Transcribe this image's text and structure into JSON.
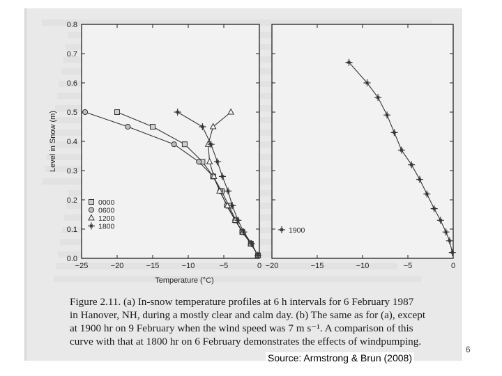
{
  "chart_data": [
    {
      "type": "line",
      "panel": "(a)",
      "xlabel": "Temperature (°C)",
      "ylabel": "Level in Snow (m)",
      "xlim": [
        -25,
        0
      ],
      "ylim": [
        0.0,
        0.8
      ],
      "xticks": [
        -25,
        -20,
        -15,
        -10,
        -5,
        0
      ],
      "yticks": [
        0.0,
        0.1,
        0.2,
        0.3,
        0.4,
        0.5,
        0.6,
        0.7,
        0.8
      ],
      "xtick_labels": [
        "−25",
        "−20",
        "−15",
        "−10",
        "−5",
        "0"
      ],
      "ytick_labels": [
        "0.0",
        "0.1",
        "0.2",
        "0.3",
        "0.4",
        "0.5",
        "0.6",
        "0.7",
        "0.8"
      ],
      "legend_position": "bottom-left",
      "series": [
        {
          "name": "0000",
          "marker": "square-open",
          "x": [
            -20.0,
            -15.0,
            -10.5,
            -8.0,
            -6.5,
            -5.3,
            -4.3,
            -3.3,
            -2.4,
            -1.2,
            -0.2
          ],
          "y": [
            0.5,
            0.45,
            0.39,
            0.33,
            0.28,
            0.23,
            0.18,
            0.13,
            0.09,
            0.05,
            0.01
          ]
        },
        {
          "name": "0600",
          "marker": "circle-open",
          "x": [
            -24.5,
            -18.5,
            -12.0,
            -8.5,
            -6.5,
            -5.5,
            -4.6,
            -3.4,
            -2.4,
            -1.2,
            -0.2
          ],
          "y": [
            0.5,
            0.45,
            0.39,
            0.33,
            0.28,
            0.23,
            0.18,
            0.13,
            0.09,
            0.05,
            0.01
          ]
        },
        {
          "name": "1200",
          "marker": "triangle-open",
          "x": [
            -4.0,
            -6.5,
            -7.2,
            -7.0,
            -6.4,
            -5.6,
            -4.5,
            -3.4,
            -2.3,
            -1.2,
            -0.2
          ],
          "y": [
            0.5,
            0.45,
            0.39,
            0.33,
            0.28,
            0.23,
            0.18,
            0.13,
            0.09,
            0.05,
            0.01
          ]
        },
        {
          "name": "1800",
          "marker": "star",
          "x": [
            -11.5,
            -8.0,
            -6.8,
            -5.9,
            -5.2,
            -4.4,
            -3.8,
            -3.0,
            -2.2,
            -1.1,
            -0.2
          ],
          "y": [
            0.5,
            0.45,
            0.39,
            0.33,
            0.28,
            0.23,
            0.18,
            0.13,
            0.09,
            0.05,
            0.01
          ]
        }
      ]
    },
    {
      "type": "line",
      "panel": "(b)",
      "xlabel": "Temperature (°C)",
      "ylabel": "",
      "xlim": [
        -20,
        0
      ],
      "ylim": [
        0.0,
        0.8
      ],
      "xticks": [
        -20,
        -15,
        -10,
        -5,
        0
      ],
      "xtick_labels": [
        "−20",
        "−15",
        "−10",
        "−5",
        "0"
      ],
      "legend_position": "bottom-left",
      "series": [
        {
          "name": "1900",
          "marker": "star",
          "x": [
            -11.5,
            -9.5,
            -8.3,
            -7.3,
            -6.5,
            -5.7,
            -4.6,
            -3.7,
            -2.9,
            -2.1,
            -1.4,
            -0.8,
            -0.4,
            -0.1
          ],
          "y": [
            0.67,
            0.6,
            0.55,
            0.49,
            0.43,
            0.37,
            0.32,
            0.27,
            0.22,
            0.17,
            0.13,
            0.09,
            0.06,
            0.02
          ]
        }
      ]
    }
  ],
  "caption": {
    "line1": "Figure 2.11.  (a) In-snow temperature profiles at 6 h intervals for 6 February 1987",
    "line2": "in Hanover, NH, during a mostly clear and calm day. (b) The same as for (a), except",
    "line3": "at 1900 hr on 9 February when the wind speed was 7 m s⁻¹. A comparison of this",
    "line4": "curve with that at 1800 hr on 6 February demonstrates the effects of windpumping."
  },
  "source": "Source: Armstrong & Brun (2008)",
  "page_number": "6"
}
